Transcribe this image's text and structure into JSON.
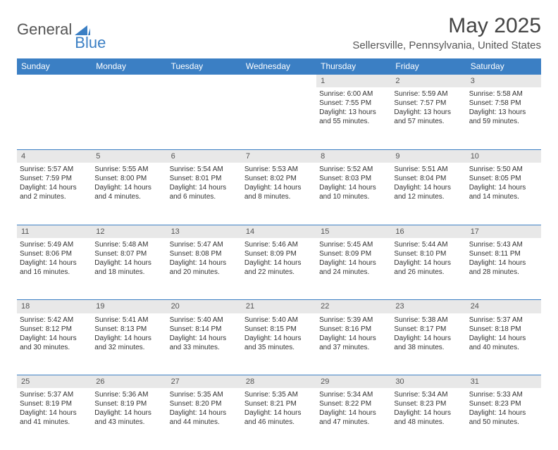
{
  "brand": {
    "part1": "General",
    "part2": "Blue"
  },
  "title": "May 2025",
  "location": "Sellersville, Pennsylvania, United States",
  "colors": {
    "accent": "#3b7fc4",
    "header_text": "#ffffff",
    "daynum_bg": "#e8e8e8",
    "body_text": "#333333"
  },
  "weekdays": [
    "Sunday",
    "Monday",
    "Tuesday",
    "Wednesday",
    "Thursday",
    "Friday",
    "Saturday"
  ],
  "weeks": [
    [
      null,
      null,
      null,
      null,
      {
        "n": "1",
        "sr": "Sunrise: 6:00 AM",
        "ss": "Sunset: 7:55 PM",
        "dl": "Daylight: 13 hours and 55 minutes."
      },
      {
        "n": "2",
        "sr": "Sunrise: 5:59 AM",
        "ss": "Sunset: 7:57 PM",
        "dl": "Daylight: 13 hours and 57 minutes."
      },
      {
        "n": "3",
        "sr": "Sunrise: 5:58 AM",
        "ss": "Sunset: 7:58 PM",
        "dl": "Daylight: 13 hours and 59 minutes."
      }
    ],
    [
      {
        "n": "4",
        "sr": "Sunrise: 5:57 AM",
        "ss": "Sunset: 7:59 PM",
        "dl": "Daylight: 14 hours and 2 minutes."
      },
      {
        "n": "5",
        "sr": "Sunrise: 5:55 AM",
        "ss": "Sunset: 8:00 PM",
        "dl": "Daylight: 14 hours and 4 minutes."
      },
      {
        "n": "6",
        "sr": "Sunrise: 5:54 AM",
        "ss": "Sunset: 8:01 PM",
        "dl": "Daylight: 14 hours and 6 minutes."
      },
      {
        "n": "7",
        "sr": "Sunrise: 5:53 AM",
        "ss": "Sunset: 8:02 PM",
        "dl": "Daylight: 14 hours and 8 minutes."
      },
      {
        "n": "8",
        "sr": "Sunrise: 5:52 AM",
        "ss": "Sunset: 8:03 PM",
        "dl": "Daylight: 14 hours and 10 minutes."
      },
      {
        "n": "9",
        "sr": "Sunrise: 5:51 AM",
        "ss": "Sunset: 8:04 PM",
        "dl": "Daylight: 14 hours and 12 minutes."
      },
      {
        "n": "10",
        "sr": "Sunrise: 5:50 AM",
        "ss": "Sunset: 8:05 PM",
        "dl": "Daylight: 14 hours and 14 minutes."
      }
    ],
    [
      {
        "n": "11",
        "sr": "Sunrise: 5:49 AM",
        "ss": "Sunset: 8:06 PM",
        "dl": "Daylight: 14 hours and 16 minutes."
      },
      {
        "n": "12",
        "sr": "Sunrise: 5:48 AM",
        "ss": "Sunset: 8:07 PM",
        "dl": "Daylight: 14 hours and 18 minutes."
      },
      {
        "n": "13",
        "sr": "Sunrise: 5:47 AM",
        "ss": "Sunset: 8:08 PM",
        "dl": "Daylight: 14 hours and 20 minutes."
      },
      {
        "n": "14",
        "sr": "Sunrise: 5:46 AM",
        "ss": "Sunset: 8:09 PM",
        "dl": "Daylight: 14 hours and 22 minutes."
      },
      {
        "n": "15",
        "sr": "Sunrise: 5:45 AM",
        "ss": "Sunset: 8:09 PM",
        "dl": "Daylight: 14 hours and 24 minutes."
      },
      {
        "n": "16",
        "sr": "Sunrise: 5:44 AM",
        "ss": "Sunset: 8:10 PM",
        "dl": "Daylight: 14 hours and 26 minutes."
      },
      {
        "n": "17",
        "sr": "Sunrise: 5:43 AM",
        "ss": "Sunset: 8:11 PM",
        "dl": "Daylight: 14 hours and 28 minutes."
      }
    ],
    [
      {
        "n": "18",
        "sr": "Sunrise: 5:42 AM",
        "ss": "Sunset: 8:12 PM",
        "dl": "Daylight: 14 hours and 30 minutes."
      },
      {
        "n": "19",
        "sr": "Sunrise: 5:41 AM",
        "ss": "Sunset: 8:13 PM",
        "dl": "Daylight: 14 hours and 32 minutes."
      },
      {
        "n": "20",
        "sr": "Sunrise: 5:40 AM",
        "ss": "Sunset: 8:14 PM",
        "dl": "Daylight: 14 hours and 33 minutes."
      },
      {
        "n": "21",
        "sr": "Sunrise: 5:40 AM",
        "ss": "Sunset: 8:15 PM",
        "dl": "Daylight: 14 hours and 35 minutes."
      },
      {
        "n": "22",
        "sr": "Sunrise: 5:39 AM",
        "ss": "Sunset: 8:16 PM",
        "dl": "Daylight: 14 hours and 37 minutes."
      },
      {
        "n": "23",
        "sr": "Sunrise: 5:38 AM",
        "ss": "Sunset: 8:17 PM",
        "dl": "Daylight: 14 hours and 38 minutes."
      },
      {
        "n": "24",
        "sr": "Sunrise: 5:37 AM",
        "ss": "Sunset: 8:18 PM",
        "dl": "Daylight: 14 hours and 40 minutes."
      }
    ],
    [
      {
        "n": "25",
        "sr": "Sunrise: 5:37 AM",
        "ss": "Sunset: 8:19 PM",
        "dl": "Daylight: 14 hours and 41 minutes."
      },
      {
        "n": "26",
        "sr": "Sunrise: 5:36 AM",
        "ss": "Sunset: 8:19 PM",
        "dl": "Daylight: 14 hours and 43 minutes."
      },
      {
        "n": "27",
        "sr": "Sunrise: 5:35 AM",
        "ss": "Sunset: 8:20 PM",
        "dl": "Daylight: 14 hours and 44 minutes."
      },
      {
        "n": "28",
        "sr": "Sunrise: 5:35 AM",
        "ss": "Sunset: 8:21 PM",
        "dl": "Daylight: 14 hours and 46 minutes."
      },
      {
        "n": "29",
        "sr": "Sunrise: 5:34 AM",
        "ss": "Sunset: 8:22 PM",
        "dl": "Daylight: 14 hours and 47 minutes."
      },
      {
        "n": "30",
        "sr": "Sunrise: 5:34 AM",
        "ss": "Sunset: 8:23 PM",
        "dl": "Daylight: 14 hours and 48 minutes."
      },
      {
        "n": "31",
        "sr": "Sunrise: 5:33 AM",
        "ss": "Sunset: 8:23 PM",
        "dl": "Daylight: 14 hours and 50 minutes."
      }
    ]
  ]
}
